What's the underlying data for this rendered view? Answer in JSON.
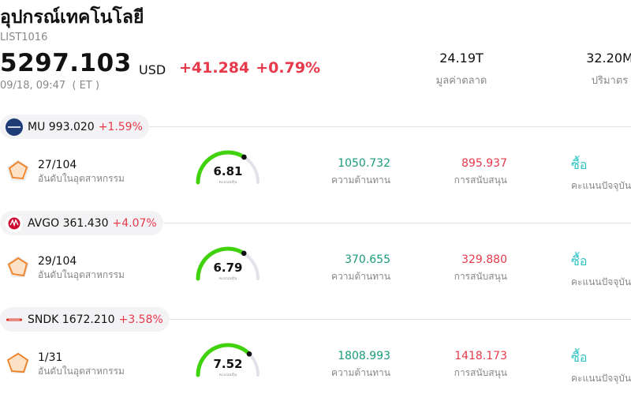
{
  "header": {
    "title": "อุปกรณ์เทคโนโลยี",
    "code": "LIST1016",
    "price": "5297.103",
    "currency": "USD",
    "change": "+41.284",
    "change_pct": "+0.79%",
    "timestamp": "09/18, 09:47  ( ET )"
  },
  "stats": {
    "market_cap": {
      "value": "24.19T",
      "label": "มูลค่าตลาด"
    },
    "volume": {
      "value": "32.20M",
      "label": "ปริมาตร"
    }
  },
  "labels": {
    "rank": "อันดับในอุตสาหกรรม",
    "score": "คะแนนหุ้น",
    "resistance": "ความต้านทาน",
    "support": "การสนับสนุน",
    "rating_caption": "คะแนนปัจจุบัน"
  },
  "colors": {
    "up": "#e8394b",
    "resistance": "#1a9b7a",
    "rating": "#2fc4c4",
    "gauge": "#3fd20d"
  },
  "stocks": [
    {
      "symbol": "MU",
      "price": "993.020",
      "change_pct": "+1.59%",
      "logo_icon": "micron-logo-icon",
      "logo_color": "#1f3c77",
      "rank": "27/104",
      "score": 6.81,
      "score_text": "6.81",
      "resistance": "1050.732",
      "support": "895.937",
      "rating": "ซื้อ"
    },
    {
      "symbol": "AVGO",
      "price": "361.430",
      "change_pct": "+4.07%",
      "logo_icon": "broadcom-logo-icon",
      "logo_color": "#cc092f",
      "rank": "29/104",
      "score": 6.79,
      "score_text": "6.79",
      "resistance": "370.655",
      "support": "329.880",
      "rating": "ซื้อ"
    },
    {
      "symbol": "SNDK",
      "price": "1672.210",
      "change_pct": "+3.58%",
      "logo_icon": "sandisk-logo-icon",
      "logo_color": "#e0352b",
      "rank": "1/31",
      "score": 7.52,
      "score_text": "7.52",
      "resistance": "1808.993",
      "support": "1418.173",
      "rating": "ซื้อ"
    }
  ]
}
